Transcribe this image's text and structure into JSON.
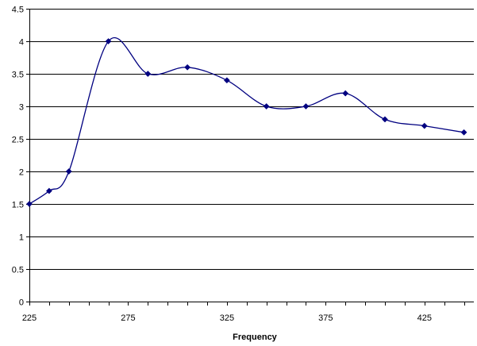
{
  "chart_data": {
    "type": "line",
    "title": "",
    "xlabel": "Frequency",
    "ylabel": "",
    "xlim": [
      225,
      450
    ],
    "ylim": [
      0,
      4.5
    ],
    "x_ticks": [
      "225",
      "275",
      "325",
      "375",
      "425"
    ],
    "y_ticks": [
      "0",
      "0.5",
      "1",
      "1.5",
      "2",
      "2.5",
      "3",
      "3.5",
      "4",
      "4.5"
    ],
    "grid": "horizontal",
    "legend": "none",
    "smooth": true,
    "series": [
      {
        "x": [
          225,
          235,
          245,
          265,
          285,
          305,
          325,
          345,
          365,
          385,
          405,
          425,
          445
        ],
        "y": [
          1.5,
          1.7,
          2.0,
          4.0,
          3.5,
          3.6,
          3.4,
          3.0,
          3.0,
          3.2,
          2.8,
          2.7,
          2.6
        ]
      }
    ],
    "colors": {
      "line": "#000080",
      "marker": "#000080",
      "grid": "#000000",
      "axis": "#000000"
    }
  }
}
